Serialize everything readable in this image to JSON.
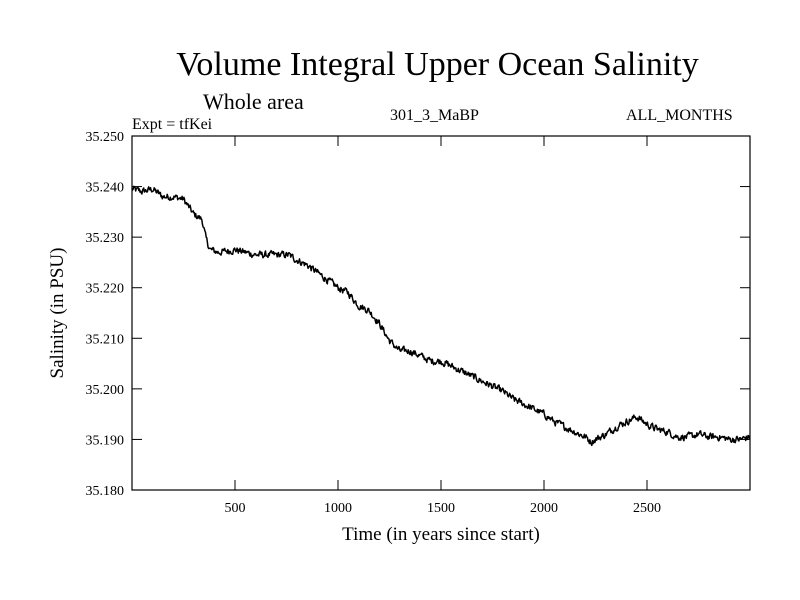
{
  "chart_data": {
    "type": "line",
    "title": "Volume Integral Upper Ocean Salinity",
    "subtitle": "Whole area",
    "experiment_label": "Expt = tfKei",
    "experiment_name": "301_3_MaBP",
    "season": "ALL_MONTHS",
    "xlabel": "Time (in years since start)",
    "ylabel": "Salinity (in PSU)",
    "xlim": [
      0,
      3000
    ],
    "ylim": [
      35.18,
      35.25
    ],
    "xticks": [
      500,
      1000,
      1500,
      2000,
      2500
    ],
    "xtick_labels": [
      "500",
      "1000",
      "1500",
      "2000",
      "2500"
    ],
    "yticks": [
      35.18,
      35.19,
      35.2,
      35.21,
      35.22,
      35.23,
      35.24,
      35.25
    ],
    "ytick_labels": [
      "35.180",
      "35.190",
      "35.200",
      "35.210",
      "35.220",
      "35.230",
      "35.240",
      "35.250"
    ],
    "grid": false,
    "legend": "none",
    "series": [
      {
        "color": "#000000",
        "x": [
          0,
          50,
          100,
          150,
          200,
          250,
          300,
          340,
          360,
          380,
          420,
          500,
          600,
          700,
          760,
          800,
          850,
          900,
          950,
          1000,
          1050,
          1100,
          1150,
          1200,
          1250,
          1300,
          1350,
          1400,
          1450,
          1500,
          1550,
          1600,
          1650,
          1700,
          1750,
          1800,
          1850,
          1900,
          1950,
          2000,
          2050,
          2100,
          2150,
          2200,
          2230,
          2250,
          2300,
          2350,
          2400,
          2450,
          2500,
          2550,
          2600,
          2650,
          2700,
          2750,
          2800,
          2850,
          2900,
          2950,
          3000
        ],
        "y": [
          35.2395,
          35.239,
          35.2395,
          35.238,
          35.238,
          35.2375,
          35.2345,
          35.2335,
          35.2295,
          35.2275,
          35.227,
          35.2275,
          35.2265,
          35.2265,
          35.2265,
          35.2255,
          35.2245,
          35.223,
          35.2215,
          35.22,
          35.219,
          35.2165,
          35.2155,
          35.213,
          35.2095,
          35.2075,
          35.2075,
          35.2065,
          35.2055,
          35.2055,
          35.2045,
          35.2035,
          35.2025,
          35.2015,
          35.2005,
          35.1995,
          35.198,
          35.197,
          35.196,
          35.195,
          35.1935,
          35.1925,
          35.1915,
          35.1905,
          35.1895,
          35.19,
          35.191,
          35.1925,
          35.1935,
          35.1945,
          35.193,
          35.192,
          35.1915,
          35.1905,
          35.1905,
          35.191,
          35.1905,
          35.1905,
          35.19,
          35.19,
          35.1905
        ],
        "noise": 0.0011
      }
    ]
  }
}
